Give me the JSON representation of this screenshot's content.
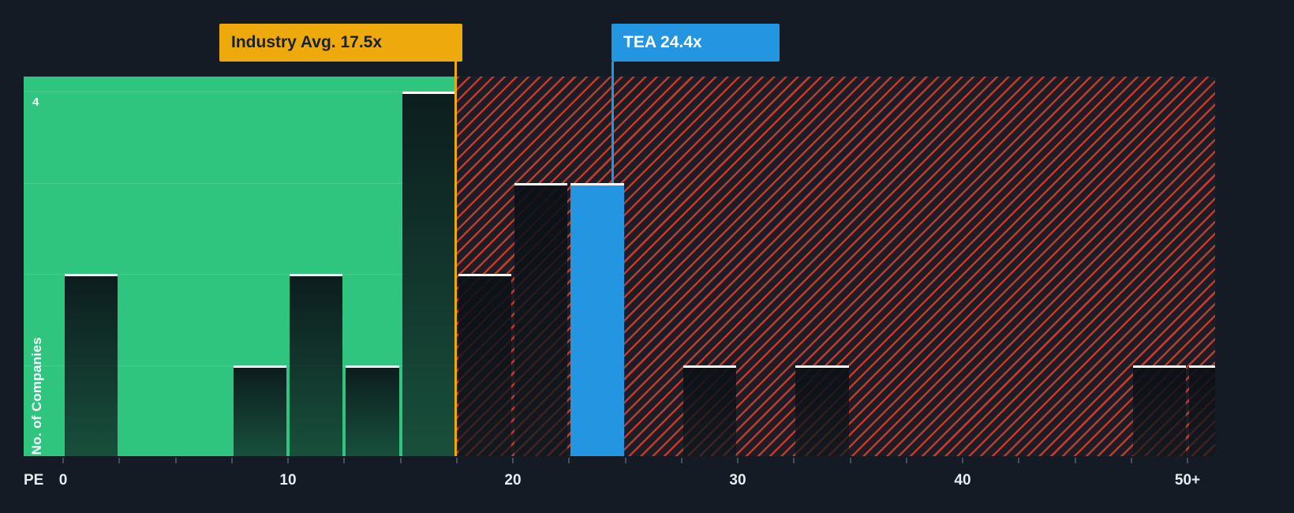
{
  "chart_data": {
    "type": "bar",
    "subtype": "histogram",
    "title": "",
    "xlabel": "PE",
    "ylabel": "No. of Companies",
    "y_tick_label": "4",
    "ylim": [
      0,
      4.16
    ],
    "bin_width": 2.5,
    "x_ticks": [
      {
        "pe": 0,
        "label": "0"
      },
      {
        "pe": 10,
        "label": "10"
      },
      {
        "pe": 20,
        "label": "20"
      },
      {
        "pe": 30,
        "label": "30"
      },
      {
        "pe": 40,
        "label": "40"
      },
      {
        "pe": 50,
        "label": "50+"
      }
    ],
    "bars": [
      {
        "pe_start": 0,
        "count": 2
      },
      {
        "pe_start": 7.5,
        "count": 1
      },
      {
        "pe_start": 10,
        "count": 2
      },
      {
        "pe_start": 12.5,
        "count": 1
      },
      {
        "pe_start": 15,
        "count": 4
      },
      {
        "pe_start": 17.5,
        "count": 2
      },
      {
        "pe_start": 20,
        "count": 3
      },
      {
        "pe_start": 22.5,
        "count": 3,
        "highlight": true
      },
      {
        "pe_start": 27.5,
        "count": 1
      },
      {
        "pe_start": 32.5,
        "count": 1
      },
      {
        "pe_start": 47.5,
        "count": 1
      },
      {
        "pe_start": 50,
        "count": 1
      }
    ],
    "zones": [
      {
        "name": "below-industry-average",
        "to_pe": 17.5,
        "color": "#2fc57f"
      },
      {
        "name": "above-industry-average",
        "from_pe": 17.5,
        "style": "red-hatch",
        "color": "#e44032"
      }
    ],
    "annotations": {
      "industry_avg": {
        "label": "Industry Avg. 17.5x",
        "pe": 17.5,
        "color": "#eeaa0c"
      },
      "company": {
        "label": "TEA 24.4x",
        "pe": 24.4,
        "color": "#2395e1"
      }
    },
    "colors": {
      "background": "#141b24",
      "green_zone": "#2fc57f",
      "hatch_red": "#e44032",
      "bar_cap": "#ffffff",
      "bar_highlight": "#2395e1",
      "industry_accent": "#eeaa0c",
      "company_accent": "#2395e1"
    }
  }
}
